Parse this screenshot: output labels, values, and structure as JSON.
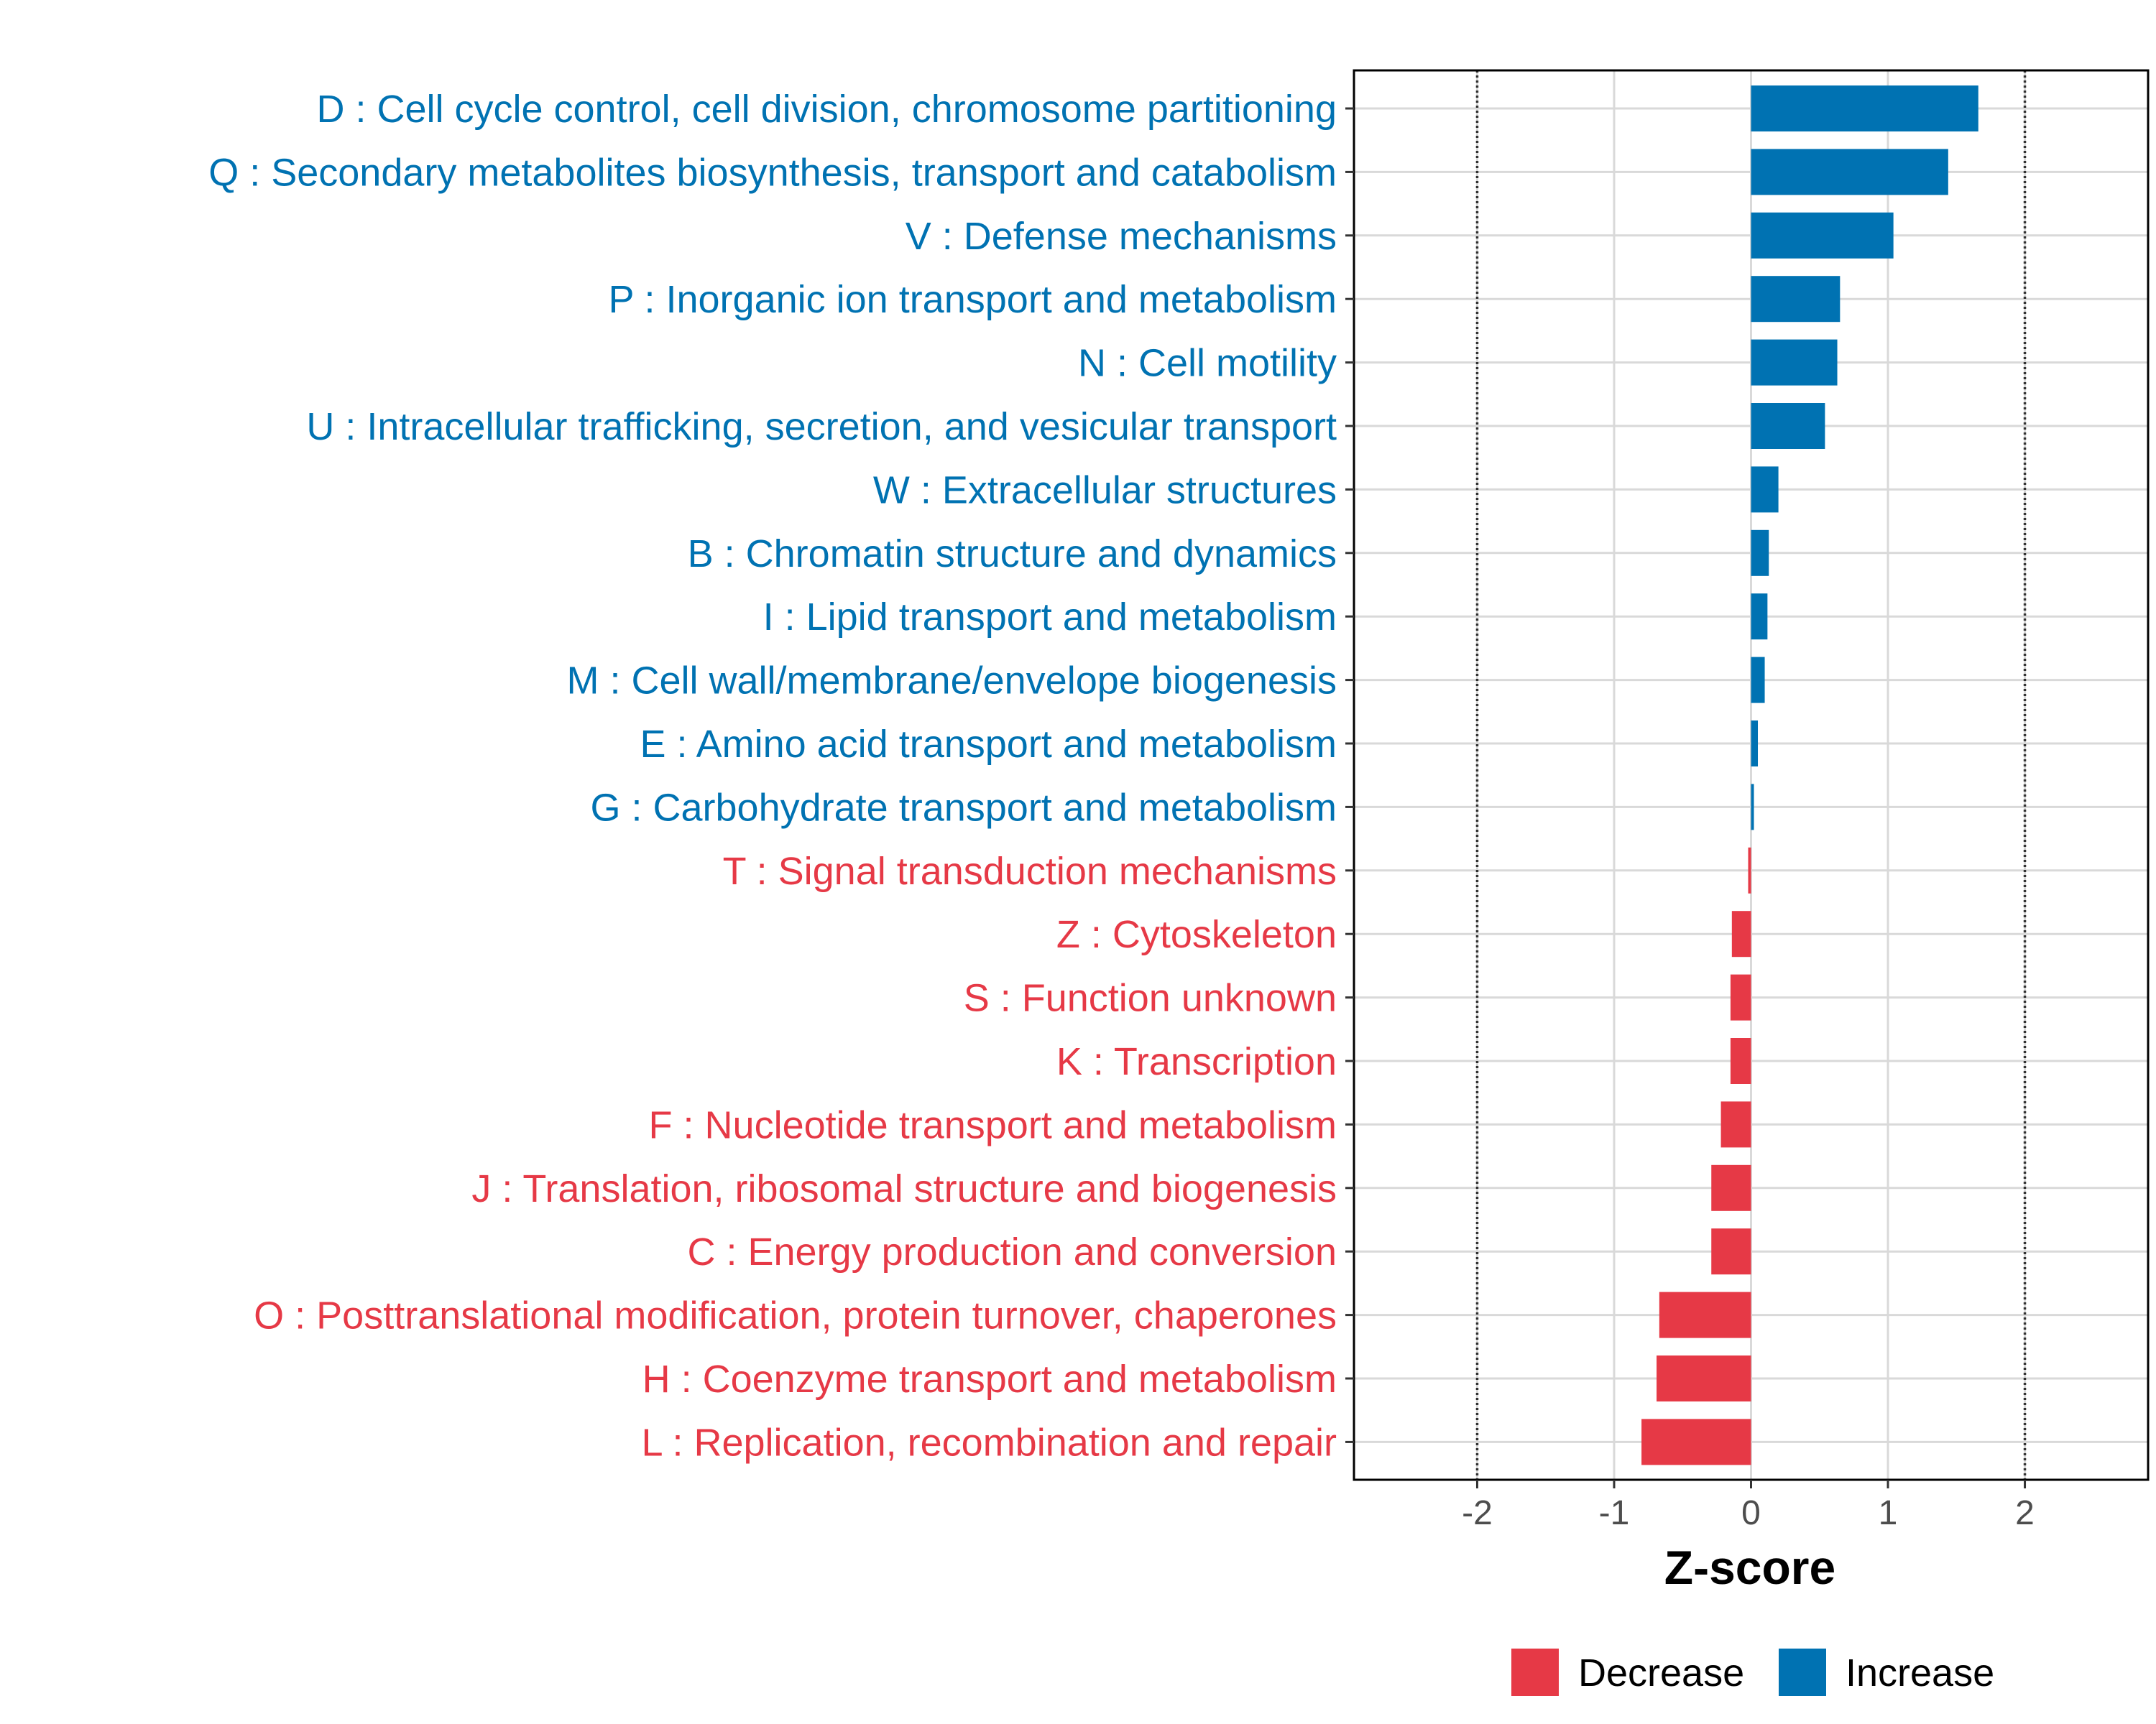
{
  "chart_data": {
    "type": "bar",
    "orientation": "horizontal",
    "xlabel": "Z-score",
    "xlim": [
      -2.9,
      2.9
    ],
    "xticks": [
      -2,
      -1,
      0,
      1,
      2
    ],
    "xtick_labels": [
      "-2",
      "-1",
      "0",
      "1",
      "2"
    ],
    "reference_lines": [
      -2,
      2
    ],
    "colors": {
      "Increase": "#0072B2",
      "Decrease": "#E63946"
    },
    "categories": [
      "D : Cell cycle control, cell division, chromosome partitioning",
      "Q : Secondary metabolites biosynthesis, transport and catabolism",
      "V : Defense mechanisms",
      "P : Inorganic ion transport and metabolism",
      "N : Cell motility",
      "U : Intracellular trafficking, secretion, and vesicular transport",
      "W : Extracellular structures",
      "B : Chromatin structure and dynamics",
      "I : Lipid transport and metabolism",
      "M : Cell wall/membrane/envelope biogenesis",
      "E : Amino acid transport and metabolism",
      "G : Carbohydrate transport and metabolism",
      "T : Signal transduction mechanisms",
      "Z : Cytoskeleton",
      "S : Function unknown",
      "K : Transcription",
      "F : Nucleotide transport and metabolism",
      "J : Translation, ribosomal structure and biogenesis",
      "C : Energy production and conversion",
      "O : Posttranslational modification, protein turnover, chaperones",
      "H : Coenzyme transport and metabolism",
      "L : Replication, recombination and repair"
    ],
    "values": [
      1.66,
      1.44,
      1.04,
      0.65,
      0.63,
      0.54,
      0.2,
      0.13,
      0.12,
      0.1,
      0.05,
      0.01,
      -0.02,
      -0.14,
      -0.15,
      -0.15,
      -0.22,
      -0.29,
      -0.29,
      -0.67,
      -0.69,
      -0.8
    ],
    "groups": [
      "Increase",
      "Increase",
      "Increase",
      "Increase",
      "Increase",
      "Increase",
      "Increase",
      "Increase",
      "Increase",
      "Increase",
      "Increase",
      "Increase",
      "Decrease",
      "Decrease",
      "Decrease",
      "Decrease",
      "Decrease",
      "Decrease",
      "Decrease",
      "Decrease",
      "Decrease",
      "Decrease"
    ],
    "legend": {
      "position": "bottom",
      "entries": [
        {
          "label": "Decrease",
          "color": "#E63946"
        },
        {
          "label": "Increase",
          "color": "#0072B2"
        }
      ]
    }
  }
}
